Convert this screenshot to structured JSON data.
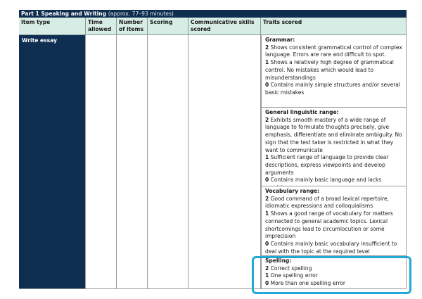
{
  "table": {
    "title": "Part 1 Speaking and Writing",
    "title_note": "(approx. 77–93 minutes)",
    "headers": [
      "Item type",
      "Time allowed",
      "Number of items",
      "Scoring",
      "Communicative skills scored",
      "Traits scored"
    ],
    "item_type": "Write essay",
    "traits": [
      {
        "name": "Grammar:",
        "levels": [
          {
            "score": "2",
            "text": " Shows consistent grammatical control of complex language. Errors are rare and difficult to spot."
          },
          {
            "score": "1",
            "text": " Shows a relatively high degree of grammatical control. No mistakes which would lead to misunderstandings"
          },
          {
            "score": "0",
            "text": " Contains mainly simple structures and/or several basic mistakes"
          }
        ]
      },
      {
        "name": "General linguistic range:",
        "levels": [
          {
            "score": "2",
            "text": " Exhibits smooth mastery of a wide range of language to formulate thoughts precisely, give emphasis, differentiate and eliminate ambiguity. No sign that the test taker is restricted in what they want to communicate"
          },
          {
            "score": "1",
            "text": " Sufficient range of language to provide clear descriptions, express viewpoints and develop arguments"
          },
          {
            "score": "0",
            "text": " Contains mainly basic language and lacks precision"
          }
        ]
      },
      {
        "name": "Vocabulary range:",
        "levels": [
          {
            "score": "2",
            "text": " Good command of a broad lexical repertoire, idiomatic expressions and colloquialisms"
          },
          {
            "score": "1",
            "text": " Shows a good range of vocabulary for matters connected to general academic topics. Lexical shortcomings lead to circumlocution or some imprecision"
          },
          {
            "score": "0",
            "text": " Contains mainly basic vocabulary insufficient to deal with the topic at the required level"
          }
        ]
      },
      {
        "name": "Spelling:",
        "levels": [
          {
            "score": "2",
            "text": " Correct spelling"
          },
          {
            "score": "1",
            "text": " One spelling error"
          },
          {
            "score": "0",
            "text": " More than one spelling error"
          }
        ]
      }
    ]
  },
  "highlight_color": "#21a8d8"
}
